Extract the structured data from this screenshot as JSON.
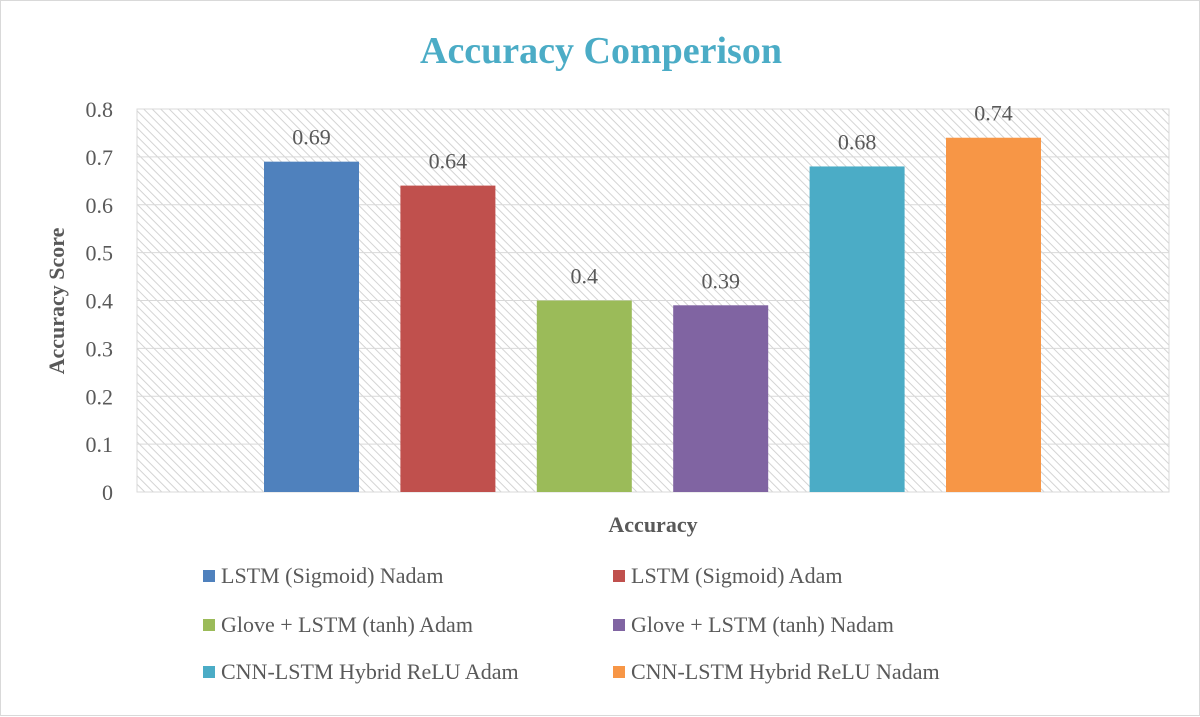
{
  "chart_data": {
    "type": "bar",
    "title": "Accuracy Comperison",
    "xlabel": "Accuracy",
    "ylabel": "Accuracy Score",
    "categories": [
      "Accuracy"
    ],
    "ylim": [
      0,
      0.8
    ],
    "yticks": [
      "0",
      "0.1",
      "0.2",
      "0.3",
      "0.4",
      "0.5",
      "0.6",
      "0.7",
      "0.8"
    ],
    "grid": true,
    "legend_position": "bottom",
    "series": [
      {
        "name": "LSTM (Sigmoid) Nadam",
        "values": [
          0.69
        ],
        "label": "0.69",
        "color": "#4f81bd"
      },
      {
        "name": "LSTM (Sigmoid) Adam",
        "values": [
          0.64
        ],
        "label": "0.64",
        "color": "#c0504d"
      },
      {
        "name": "Glove + LSTM (tanh) Adam",
        "values": [
          0.4
        ],
        "label": "0.4",
        "color": "#9bbb59"
      },
      {
        "name": "Glove + LSTM (tanh) Nadam",
        "values": [
          0.39
        ],
        "label": "0.39",
        "color": "#8064a2"
      },
      {
        "name": "CNN-LSTM Hybrid ReLU Adam",
        "values": [
          0.68
        ],
        "label": "0.68",
        "color": "#4bacc6"
      },
      {
        "name": "CNN-LSTM Hybrid ReLU Nadam",
        "values": [
          0.74
        ],
        "label": "0.74",
        "color": "#f79646"
      }
    ]
  }
}
